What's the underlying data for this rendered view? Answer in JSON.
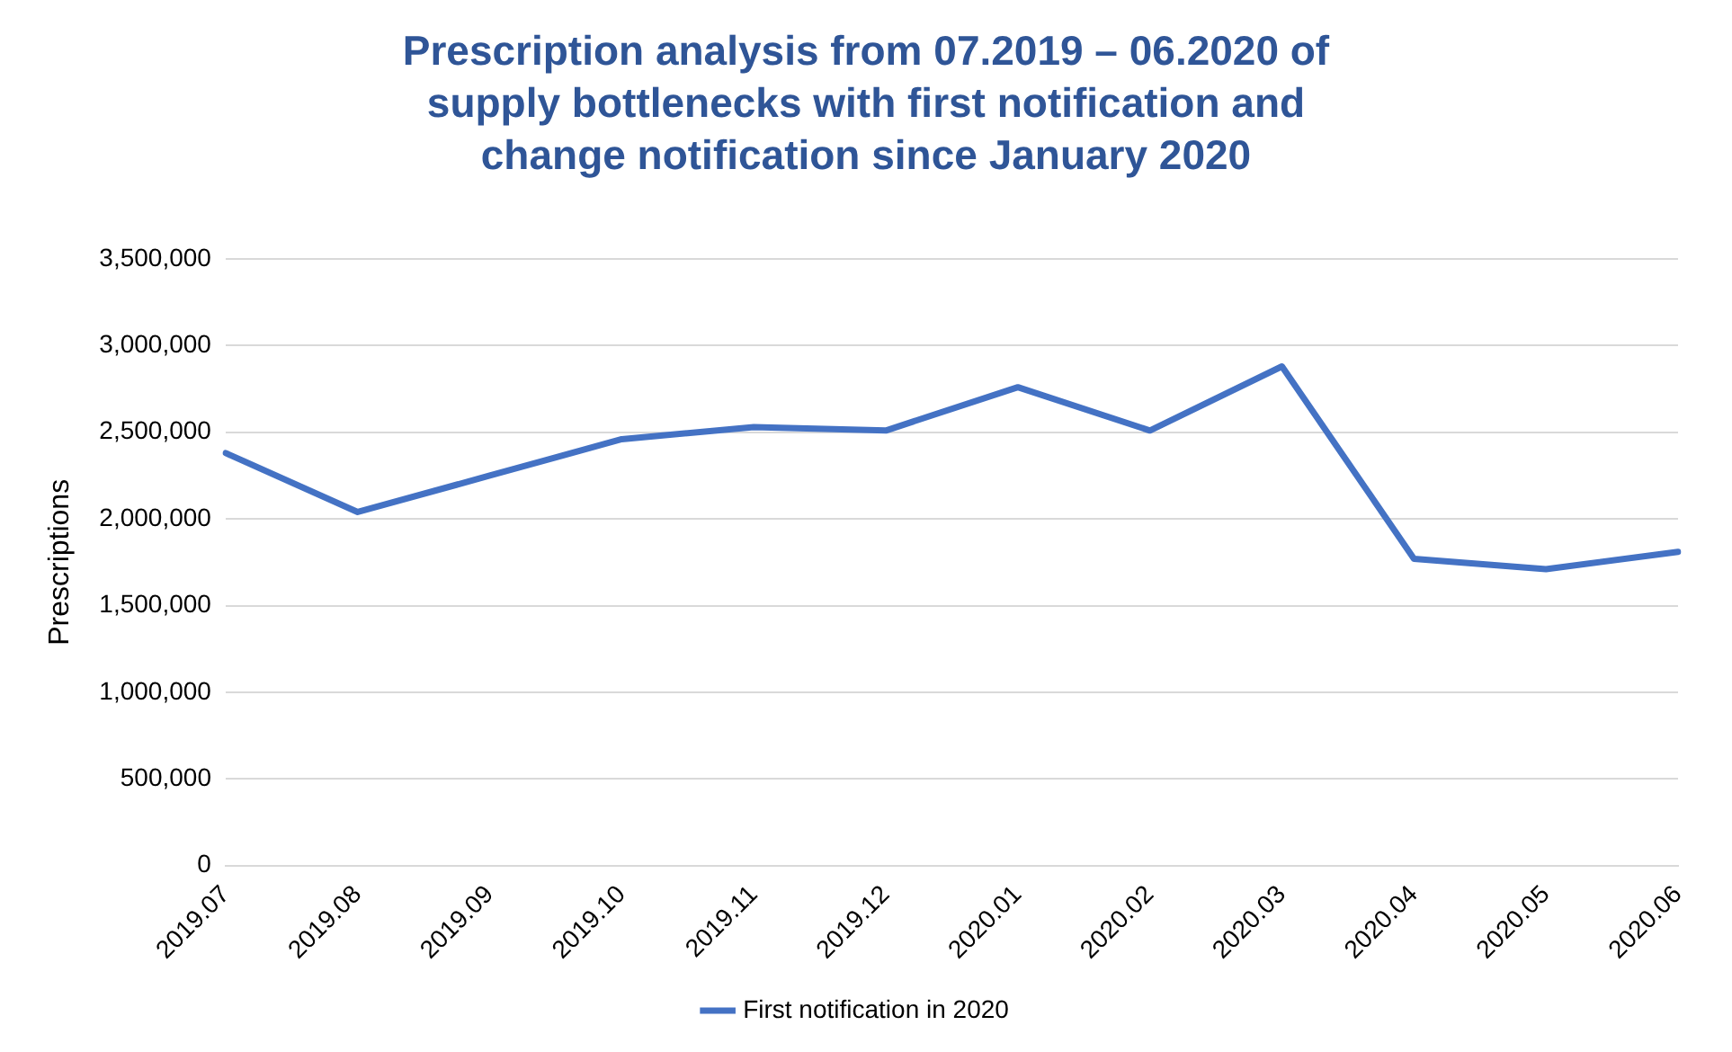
{
  "chart_data": {
    "type": "line",
    "title": "Prescription analysis from 07.2019 – 06.2020 of supply bottlenecks with first notification and change notification since January 2020",
    "ylabel": "Prescriptions",
    "categories": [
      "2019.07",
      "2019.08",
      "2019.09",
      "2019.10",
      "2019.11",
      "2019.12",
      "2020.01",
      "2020.02",
      "2020.03",
      "2020.04",
      "2020.05",
      "2020.06"
    ],
    "series": [
      {
        "name": "First notification in 2020",
        "color": "#4472c4",
        "values": [
          2380000,
          2040000,
          2250000,
          2460000,
          2530000,
          2510000,
          2760000,
          2510000,
          2880000,
          1770000,
          1710000,
          1810000
        ]
      }
    ],
    "ylim": [
      0,
      3500000
    ],
    "yticks": [
      0,
      {
        "value": 500000,
        "label": "500,000"
      },
      {
        "value": 1000000,
        "label": "1,000,000"
      },
      {
        "value": 1500000,
        "label": "1,500,000"
      },
      {
        "value": 2000000,
        "label": "2,000,000"
      },
      {
        "value": 2500000,
        "label": "2,500,000"
      },
      {
        "value": 3000000,
        "label": "3,000,000"
      },
      {
        "value": 3500000,
        "label": "3,500,000"
      }
    ],
    "grid": "y",
    "legend": "bottom",
    "marker": "none",
    "line_style": "solid"
  }
}
